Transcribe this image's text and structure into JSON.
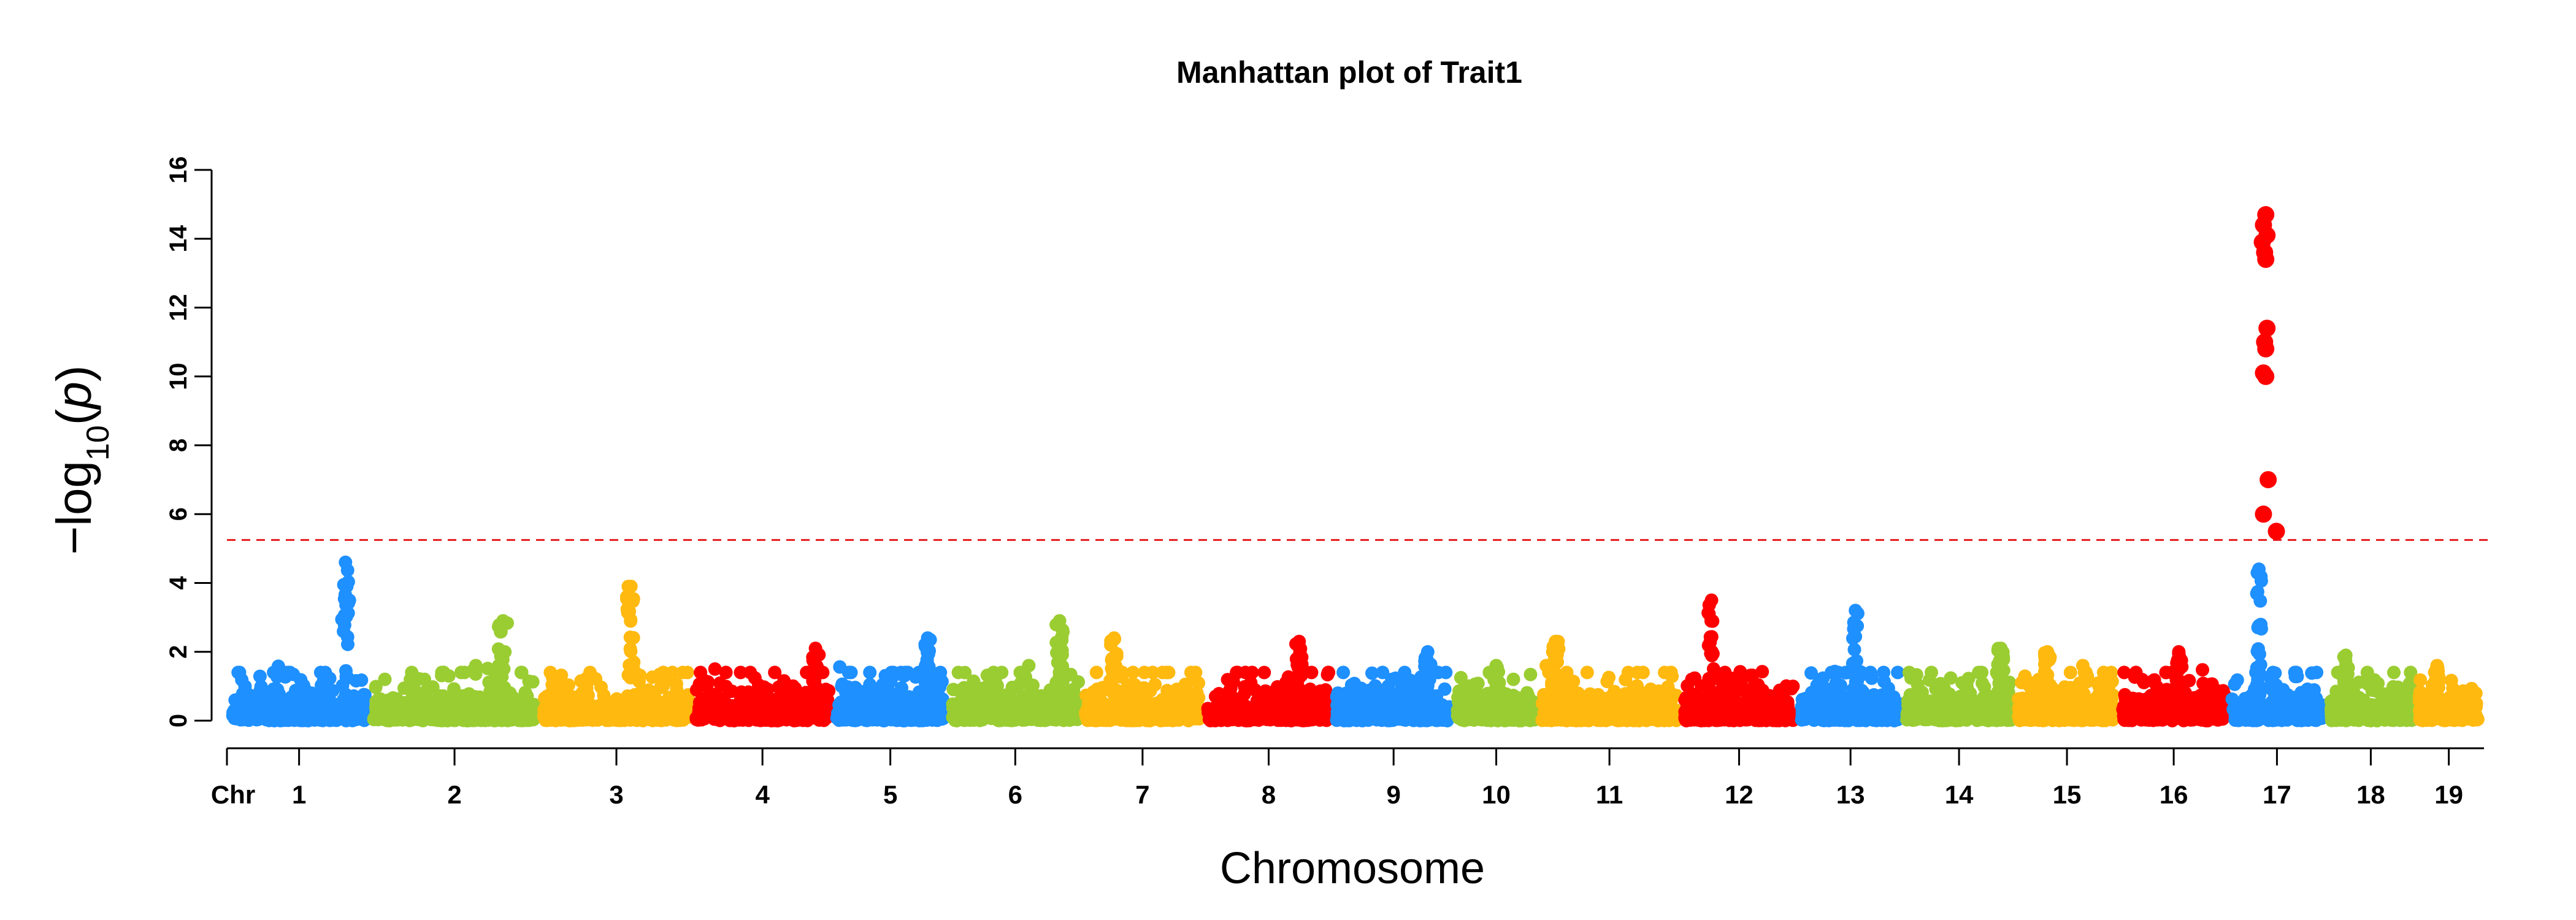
{
  "chart_data": {
    "type": "scatter",
    "title": "Manhattan plot of Trait1",
    "xlabel": "Chromosome",
    "ylabel": {
      "prefix": "−log",
      "subscript": "10",
      "open": "(",
      "var": "p",
      "close": ")"
    },
    "x_axis_prefix_label": "Chr",
    "ylim": [
      0,
      16
    ],
    "yticks": [
      0,
      2,
      4,
      6,
      8,
      10,
      12,
      14,
      16
    ],
    "threshold": 5.25,
    "threshold_color": "#E41A1C",
    "grid": false,
    "legend": "none",
    "palette": [
      "#1E90FF",
      "#9ACD32",
      "#FFB90F",
      "#FF0000"
    ],
    "chromosomes": [
      {
        "label": "1",
        "start": 0.5,
        "end": 11.8,
        "color": "#1E90FF",
        "max": 4.6,
        "peak_pos": 0.85
      },
      {
        "label": "2",
        "start": 12.5,
        "end": 26.3,
        "color": "#9ACD32",
        "max": 2.9,
        "peak_pos": 0.8
      },
      {
        "label": "3",
        "start": 27.0,
        "end": 39.4,
        "color": "#FFB90F",
        "max": 3.9,
        "peak_pos": 0.6
      },
      {
        "label": "4",
        "start": 40.0,
        "end": 51.3,
        "color": "#FF0000",
        "max": 2.1,
        "peak_pos": 0.9
      },
      {
        "label": "5",
        "start": 52.0,
        "end": 61.1,
        "color": "#1E90FF",
        "max": 2.4,
        "peak_pos": 0.85
      },
      {
        "label": "6",
        "start": 61.8,
        "end": 72.6,
        "color": "#9ACD32",
        "max": 2.9,
        "peak_pos": 0.85
      },
      {
        "label": "7",
        "start": 73.2,
        "end": 82.9,
        "color": "#FFB90F",
        "max": 2.4,
        "peak_pos": 0.25
      },
      {
        "label": "8",
        "start": 83.6,
        "end": 94.0,
        "color": "#FF0000",
        "max": 2.3,
        "peak_pos": 0.75
      },
      {
        "label": "9",
        "start": 94.6,
        "end": 104.3,
        "color": "#1E90FF",
        "max": 2.0,
        "peak_pos": 0.8
      },
      {
        "label": "10",
        "start": 104.9,
        "end": 111.5,
        "color": "#9ACD32",
        "max": 1.6,
        "peak_pos": 0.5
      },
      {
        "label": "11",
        "start": 112.1,
        "end": 123.6,
        "color": "#FFB90F",
        "max": 2.3,
        "peak_pos": 0.1
      },
      {
        "label": "12",
        "start": 124.2,
        "end": 133.6,
        "color": "#FF0000",
        "max": 3.5,
        "peak_pos": 0.25
      },
      {
        "label": "13",
        "start": 134.2,
        "end": 142.6,
        "color": "#1E90FF",
        "max": 3.2,
        "peak_pos": 0.55
      },
      {
        "label": "14",
        "start": 143.2,
        "end": 152.1,
        "color": "#9ACD32",
        "max": 2.1,
        "peak_pos": 0.9
      },
      {
        "label": "15",
        "start": 152.7,
        "end": 161.0,
        "color": "#FFB90F",
        "max": 2.0,
        "peak_pos": 0.3
      },
      {
        "label": "16",
        "start": 161.6,
        "end": 170.3,
        "color": "#FF0000",
        "max": 2.0,
        "peak_pos": 0.55
      },
      {
        "label": "17",
        "start": 170.9,
        "end": 178.6,
        "color": "#1E90FF",
        "max": 4.4,
        "peak_pos": 0.3
      },
      {
        "label": "18",
        "start": 179.2,
        "end": 186.3,
        "color": "#9ACD32",
        "max": 1.9,
        "peak_pos": 0.2
      },
      {
        "label": "19",
        "start": 186.9,
        "end": 191.9,
        "color": "#FFB90F",
        "max": 1.6,
        "peak_pos": 0.3
      }
    ],
    "xlim": [
      0,
      192.4
    ],
    "significant_points": [
      {
        "chr": "17",
        "x": 173.8,
        "y": 14.7,
        "color": "#FF0000"
      },
      {
        "chr": "17",
        "x": 173.6,
        "y": 14.4,
        "color": "#FF0000"
      },
      {
        "chr": "17",
        "x": 173.9,
        "y": 14.1,
        "color": "#FF0000"
      },
      {
        "chr": "17",
        "x": 173.5,
        "y": 13.9,
        "color": "#FF0000"
      },
      {
        "chr": "17",
        "x": 173.7,
        "y": 13.6,
        "color": "#FF0000"
      },
      {
        "chr": "17",
        "x": 173.8,
        "y": 13.4,
        "color": "#FF0000"
      },
      {
        "chr": "17",
        "x": 173.9,
        "y": 11.4,
        "color": "#FF0000"
      },
      {
        "chr": "17",
        "x": 173.7,
        "y": 11.0,
        "color": "#FF0000"
      },
      {
        "chr": "17",
        "x": 173.8,
        "y": 10.8,
        "color": "#FF0000"
      },
      {
        "chr": "17",
        "x": 173.6,
        "y": 10.1,
        "color": "#FF0000"
      },
      {
        "chr": "17",
        "x": 173.8,
        "y": 10.0,
        "color": "#FF0000"
      },
      {
        "chr": "17",
        "x": 174.0,
        "y": 7.0,
        "color": "#FF0000"
      },
      {
        "chr": "17",
        "x": 173.6,
        "y": 6.0,
        "color": "#FF0000"
      },
      {
        "chr": "17",
        "x": 174.7,
        "y": 5.5,
        "color": "#FF0000"
      }
    ]
  }
}
